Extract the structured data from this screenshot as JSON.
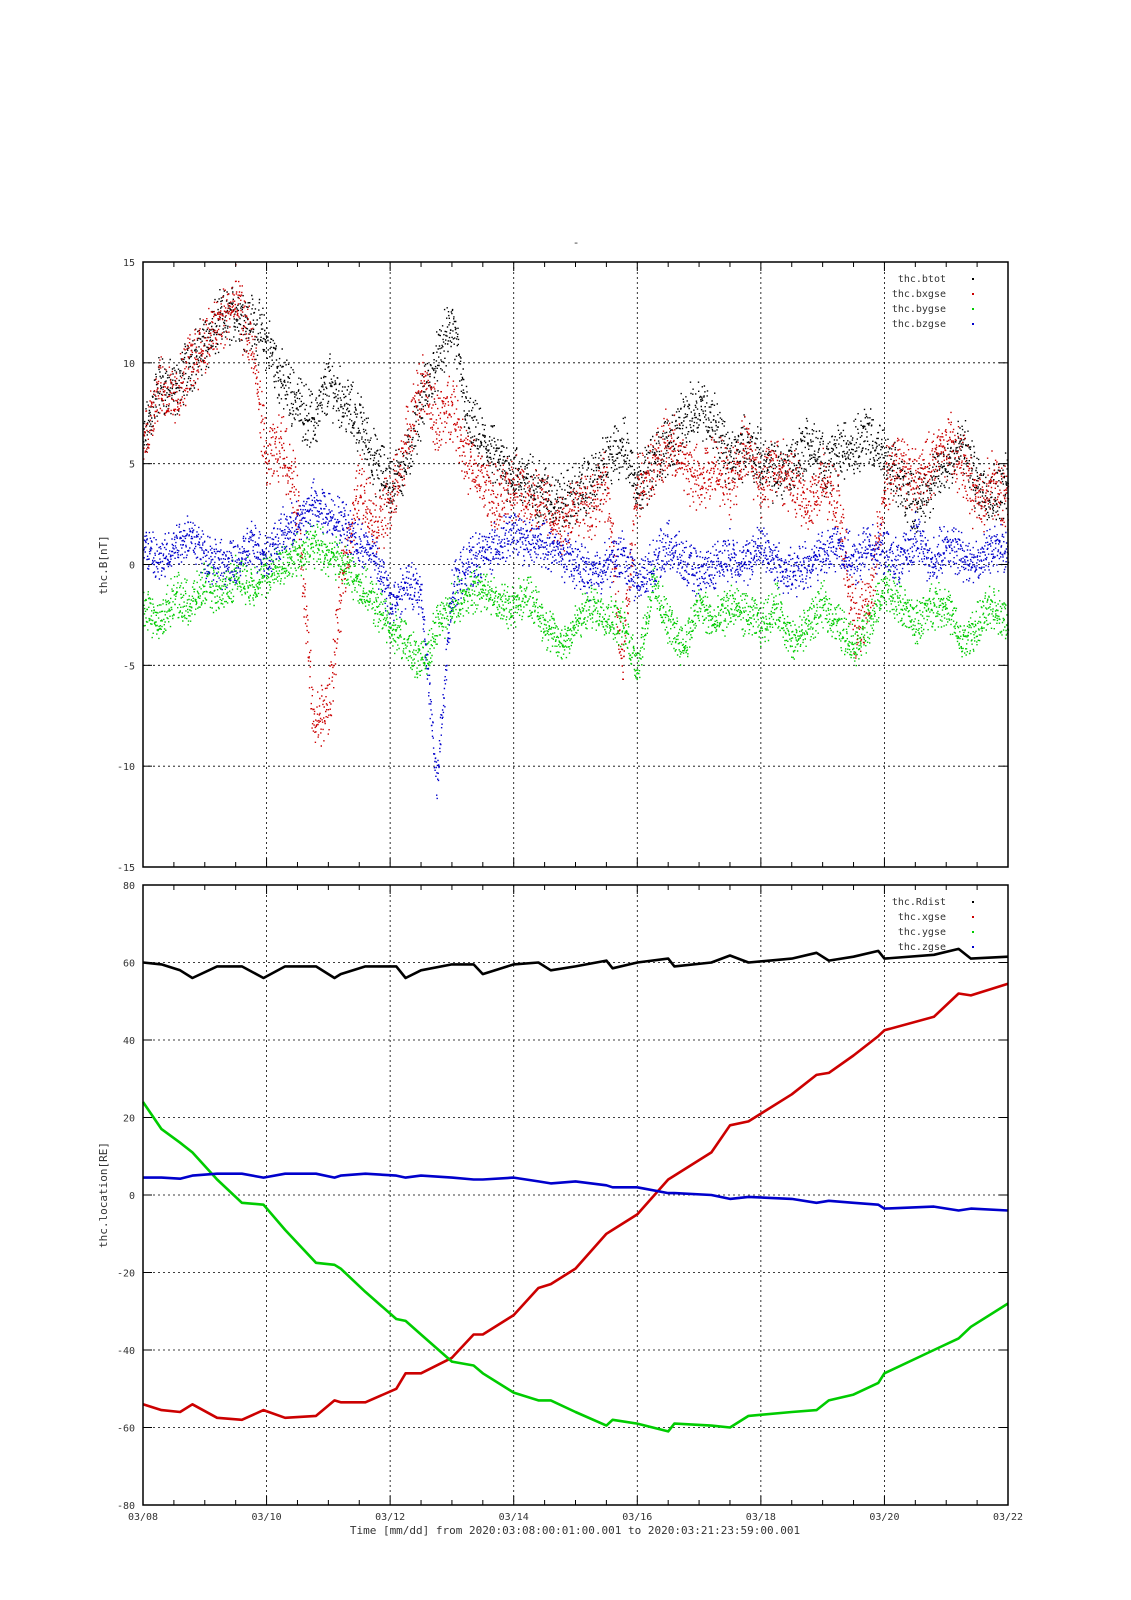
{
  "page_title_mark": "-",
  "chart_data": [
    {
      "type": "scatter",
      "ylabel": "thc.B[nT]",
      "ylim": [
        -15,
        15
      ],
      "yticks": [
        -15,
        -10,
        -5,
        0,
        5,
        10,
        15
      ],
      "xlim": [
        0,
        14
      ],
      "grid": true,
      "legend_position": "top-right",
      "series": [
        {
          "name": "thc.btot",
          "color": "#000000",
          "x": [
            0,
            0.25,
            0.5,
            0.75,
            1,
            1.25,
            1.5,
            1.75,
            2,
            2.25,
            2.5,
            2.75,
            3,
            3.25,
            3.5,
            3.75,
            4,
            4.25,
            4.5,
            4.75,
            5,
            5.25,
            5.5,
            5.75,
            6,
            6.25,
            6.5,
            6.75,
            7,
            7.25,
            7.5,
            7.75,
            8,
            8.25,
            8.5,
            8.75,
            9,
            9.25,
            9.5,
            9.75,
            10,
            10.25,
            10.5,
            10.75,
            11,
            11.25,
            11.5,
            11.75,
            12,
            12.25,
            12.5,
            12.75,
            13,
            13.25,
            13.5,
            13.75,
            14
          ],
          "y": [
            6,
            9,
            8.5,
            10,
            11,
            12,
            12.5,
            12,
            11,
            9,
            8,
            7,
            9,
            8,
            7,
            5,
            4,
            5,
            8,
            10,
            12,
            7,
            6,
            5,
            4.5,
            4,
            3.5,
            3,
            3.5,
            4,
            5,
            6,
            4,
            5,
            6,
            7,
            8,
            7,
            5,
            6,
            5,
            4.5,
            5,
            6,
            5,
            5.5,
            6,
            6.5,
            5,
            4,
            3,
            4,
            5,
            6,
            4,
            3.5,
            4
          ]
        },
        {
          "name": "thc.bxgse",
          "color": "#cc0000",
          "x": [
            0,
            0.25,
            0.5,
            0.75,
            1,
            1.25,
            1.5,
            1.75,
            2,
            2.25,
            2.5,
            2.75,
            3,
            3.25,
            3.5,
            3.75,
            4,
            4.25,
            4.5,
            4.75,
            5,
            5.25,
            5.5,
            5.75,
            6,
            6.25,
            6.5,
            6.75,
            7,
            7.25,
            7.5,
            7.75,
            8,
            8.25,
            8.5,
            8.75,
            9,
            9.25,
            9.5,
            9.75,
            10,
            10.25,
            10.5,
            10.75,
            11,
            11.25,
            11.5,
            11.75,
            12,
            12.25,
            12.5,
            12.75,
            13,
            13.25,
            13.5,
            13.75,
            14
          ],
          "y": [
            6,
            9,
            8,
            10,
            11,
            12,
            13,
            11,
            5,
            6,
            3,
            -8,
            -7,
            0,
            4,
            2,
            3,
            6,
            9,
            7,
            8,
            5,
            4,
            3,
            4,
            3,
            3,
            2,
            3,
            3,
            4,
            -5,
            4,
            5,
            6,
            5,
            4,
            5,
            4,
            6,
            4,
            5,
            4,
            3,
            4,
            3,
            -3,
            -2,
            4,
            5,
            4,
            5,
            6,
            5,
            3,
            4,
            3
          ]
        },
        {
          "name": "thc.bygse",
          "color": "#00cc00",
          "x": [
            0,
            0.25,
            0.5,
            0.75,
            1,
            1.25,
            1.5,
            1.75,
            2,
            2.25,
            2.5,
            2.75,
            3,
            3.25,
            3.5,
            3.75,
            4,
            4.25,
            4.5,
            4.75,
            5,
            5.25,
            5.5,
            5.75,
            6,
            6.25,
            6.5,
            6.75,
            7,
            7.25,
            7.5,
            7.75,
            8,
            8.25,
            8.5,
            8.75,
            9,
            9.25,
            9.5,
            9.75,
            10,
            10.25,
            10.5,
            10.75,
            11,
            11.25,
            11.5,
            11.75,
            12,
            12.25,
            12.5,
            12.75,
            13,
            13.25,
            13.5,
            13.75,
            14
          ],
          "y": [
            -2,
            -3,
            -1.5,
            -2,
            -1,
            -1.5,
            -0.5,
            -1,
            -0.5,
            0,
            0.5,
            1,
            0.5,
            0,
            -1,
            -2,
            -3,
            -4,
            -5,
            -3,
            -2,
            -1.5,
            -1,
            -2,
            -2,
            -1.5,
            -3,
            -4,
            -3,
            -2,
            -2.5,
            -3,
            -5,
            -1,
            -3,
            -4,
            -2,
            -3,
            -2,
            -2.5,
            -3,
            -2,
            -4,
            -3,
            -2,
            -3,
            -4,
            -3,
            -1,
            -2,
            -3,
            -2,
            -2,
            -4,
            -3,
            -2,
            -3
          ]
        },
        {
          "name": "thc.bzgse",
          "color": "#0000cc",
          "x": [
            0,
            0.25,
            0.5,
            0.75,
            1,
            1.25,
            1.5,
            1.75,
            2,
            2.25,
            2.5,
            2.75,
            3,
            3.25,
            3.5,
            3.75,
            4,
            4.25,
            4.5,
            4.75,
            5,
            5.25,
            5.5,
            5.75,
            6,
            6.25,
            6.5,
            6.75,
            7,
            7.25,
            7.5,
            7.75,
            8,
            8.25,
            8.5,
            8.75,
            9,
            9.25,
            9.5,
            9.75,
            10,
            10.25,
            10.5,
            10.75,
            11,
            11.25,
            11.5,
            11.75,
            12,
            12.25,
            12.5,
            12.75,
            13,
            13.25,
            13.5,
            13.75,
            14
          ],
          "y": [
            1,
            0,
            1,
            1.5,
            0.5,
            0,
            0,
            1,
            0.5,
            1.5,
            2,
            3,
            2.5,
            2,
            1,
            0.5,
            -2,
            -1,
            -1.5,
            -11,
            -1,
            0,
            0.5,
            1,
            1.5,
            1,
            1,
            0.5,
            0,
            -0.5,
            0,
            0.5,
            -1,
            0,
            1,
            0,
            -0.5,
            0,
            0.5,
            0,
            1,
            0,
            -0.5,
            0,
            0.5,
            1,
            0,
            1,
            0.5,
            0,
            1.5,
            0,
            1,
            0.5,
            0,
            1,
            0.5
          ]
        }
      ]
    },
    {
      "type": "line",
      "ylabel": "thc.location[RE]",
      "ylim": [
        -80,
        80
      ],
      "yticks": [
        -80,
        -60,
        -40,
        -20,
        0,
        20,
        40,
        60,
        80
      ],
      "xlim": [
        0,
        14
      ],
      "grid": true,
      "legend_position": "top-right",
      "series": [
        {
          "name": "thc.Rdist",
          "color": "#000000",
          "x": [
            0,
            0.3,
            0.6,
            0.8,
            1.2,
            1.6,
            1.95,
            2.3,
            2.8,
            3.1,
            3.2,
            3.6,
            4.1,
            4.25,
            4.5,
            5,
            5.35,
            5.5,
            6,
            6.4,
            6.6,
            7,
            7.5,
            7.6,
            8,
            8.5,
            8.6,
            9.2,
            9.5,
            9.8,
            10.5,
            10.9,
            11.1,
            11.5,
            11.9,
            12,
            12.8,
            13.2,
            13.4,
            14
          ],
          "y": [
            60,
            59.5,
            58,
            56,
            59,
            59,
            56,
            59,
            59,
            56,
            57,
            59,
            59,
            56,
            58,
            59.5,
            59.5,
            57,
            59.5,
            60,
            58,
            59,
            60.5,
            58.5,
            60,
            61,
            59,
            60,
            61.8,
            60,
            61,
            62.5,
            60.5,
            61.5,
            63,
            61,
            62,
            63.5,
            61,
            61.5
          ]
        },
        {
          "name": "thc.xgse",
          "color": "#cc0000",
          "x": [
            0,
            0.3,
            0.6,
            0.8,
            1.2,
            1.6,
            1.95,
            2.3,
            2.8,
            3.1,
            3.2,
            3.6,
            4.1,
            4.25,
            4.5,
            5,
            5.35,
            5.5,
            6,
            6.4,
            6.6,
            7,
            7.5,
            7.6,
            8,
            8.5,
            8.6,
            9.2,
            9.5,
            9.8,
            10.5,
            10.9,
            11.1,
            11.5,
            11.9,
            12,
            12.8,
            13.2,
            13.4,
            14
          ],
          "y": [
            -54,
            -55.5,
            -56,
            -54,
            -57.5,
            -58,
            -55.5,
            -57.5,
            -57,
            -53,
            -53.5,
            -53.5,
            -50,
            -46,
            -46,
            -42,
            -36,
            -36,
            -31,
            -24,
            -23,
            -19,
            -10,
            -9,
            -5,
            4,
            5,
            11,
            18,
            19,
            26,
            31,
            31.5,
            36,
            41,
            42.5,
            46,
            52,
            51.5,
            54.5
          ]
        },
        {
          "name": "thc.ygse",
          "color": "#00cc00",
          "x": [
            0,
            0.3,
            0.6,
            0.8,
            1.2,
            1.6,
            1.95,
            2.3,
            2.8,
            3.1,
            3.2,
            3.6,
            4.1,
            4.25,
            4.5,
            5,
            5.35,
            5.5,
            6,
            6.4,
            6.6,
            7,
            7.5,
            7.6,
            8,
            8.5,
            8.6,
            9.2,
            9.5,
            9.8,
            10.5,
            10.9,
            11.1,
            11.5,
            11.9,
            12,
            12.8,
            13.2,
            13.4,
            14
          ],
          "y": [
            24,
            17,
            13.5,
            11,
            4,
            -2,
            -2.5,
            -9,
            -17.5,
            -18,
            -19,
            -25,
            -32,
            -32.5,
            -36,
            -43,
            -44,
            -46,
            -51,
            -53,
            -53,
            -56,
            -59.5,
            -58,
            -59,
            -61,
            -59,
            -59.5,
            -60,
            -57,
            -56,
            -55.5,
            -53,
            -51.5,
            -48.5,
            -46,
            -40,
            -37,
            -34,
            -28
          ]
        },
        {
          "name": "thc.zgse",
          "color": "#0000cc",
          "x": [
            0,
            0.3,
            0.6,
            0.8,
            1.2,
            1.6,
            1.95,
            2.3,
            2.8,
            3.1,
            3.2,
            3.6,
            4.1,
            4.25,
            4.5,
            5,
            5.35,
            5.5,
            6,
            6.4,
            6.6,
            7,
            7.5,
            7.6,
            8,
            8.5,
            8.6,
            9.2,
            9.5,
            9.8,
            10.5,
            10.9,
            11.1,
            11.5,
            11.9,
            12,
            12.8,
            13.2,
            13.4,
            14
          ],
          "y": [
            4.5,
            4.5,
            4.2,
            5,
            5.5,
            5.5,
            4.5,
            5.5,
            5.5,
            4.5,
            5,
            5.5,
            5,
            4.5,
            5,
            4.5,
            4,
            4,
            4.5,
            3.5,
            3,
            3.5,
            2.5,
            2,
            2,
            0.5,
            0.5,
            0,
            -1,
            -0.5,
            -1,
            -2,
            -1.5,
            -2,
            -2.5,
            -3.5,
            -3,
            -4,
            -3.5,
            -4
          ]
        }
      ]
    }
  ],
  "x_axis": {
    "tick_labels": [
      "03/08",
      "03/10",
      "03/12",
      "03/14",
      "03/16",
      "03/18",
      "03/20",
      "03/22"
    ],
    "tick_values": [
      0,
      2,
      4,
      6,
      8,
      10,
      12,
      14
    ],
    "label": "Time [mm/dd]  from 2020:03:08:00:01:00.001  to  2020:03:21:23:59:00.001"
  }
}
